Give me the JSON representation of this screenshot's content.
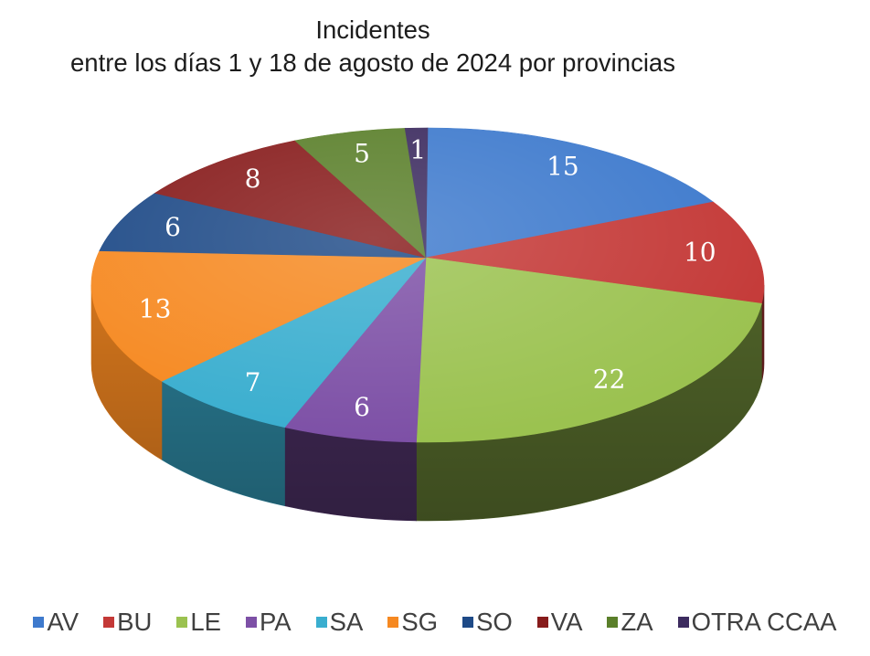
{
  "chart_data": {
    "type": "pie",
    "three_d": true,
    "show_data_labels": true,
    "title": [
      "Incidentes",
      "entre los días 1 y 18 de agosto de 2024 por provincias"
    ],
    "categories": [
      "AV",
      "BU",
      "LE",
      "PA",
      "SA",
      "SG",
      "SO",
      "VA",
      "ZA",
      "OTRA CCAA"
    ],
    "values": [
      15,
      10,
      22,
      6,
      7,
      13,
      6,
      8,
      5,
      1
    ],
    "colors": [
      "#3e7acd",
      "#c43937",
      "#9bc250",
      "#7d50a6",
      "#3aaecf",
      "#f68921",
      "#1e4a87",
      "#871b1b",
      "#5a7f2a",
      "#3c2b5f"
    ],
    "legend_position": "bottom"
  }
}
